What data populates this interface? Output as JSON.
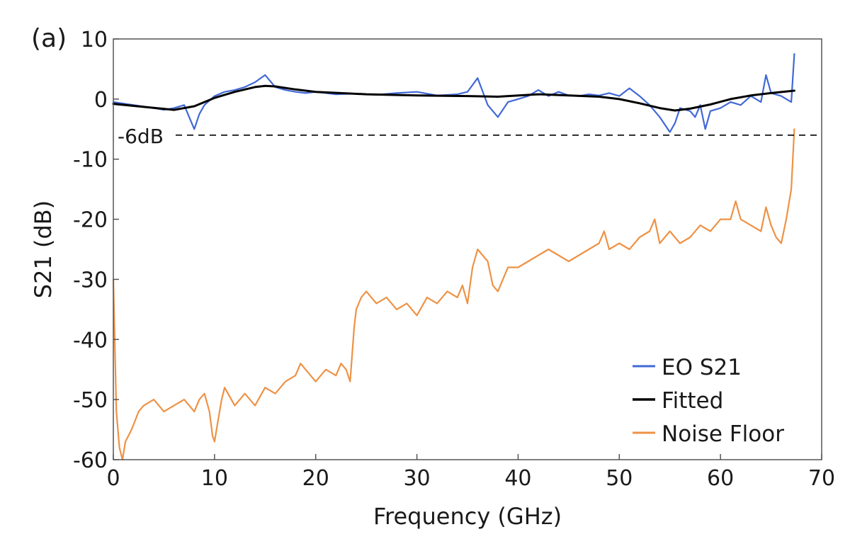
{
  "chart_data": {
    "type": "line",
    "panel_label": "(a)",
    "xlabel": "Frequency (GHz)",
    "ylabel": "S21 (dB)",
    "xlim": [
      0,
      70
    ],
    "ylim": [
      -60,
      10
    ],
    "xticks": [
      0,
      10,
      20,
      30,
      40,
      50,
      60,
      70
    ],
    "yticks": [
      10,
      0,
      -10,
      -20,
      -30,
      -40,
      -50,
      -60
    ],
    "grid": false,
    "legend_position": "bottom-right",
    "reference_line": {
      "y": -6,
      "label": "-6dB",
      "style": "dashed",
      "color": "#000000"
    },
    "series": [
      {
        "name": "EO S21",
        "color": "#4169d6",
        "x": [
          0,
          2,
          4,
          5,
          6,
          7,
          7.5,
          8,
          8.5,
          9,
          10,
          11,
          12,
          13,
          14,
          15,
          16,
          17,
          18,
          19,
          20,
          22,
          24,
          26,
          28,
          30,
          32,
          34,
          35,
          36,
          37,
          38,
          39,
          40,
          41,
          42,
          43,
          44,
          45,
          46,
          47,
          48,
          49,
          50,
          51,
          52,
          53,
          54,
          55,
          55.5,
          56,
          57,
          57.5,
          58,
          58.5,
          59,
          60,
          61,
          62,
          63,
          64,
          64.5,
          65,
          66,
          67,
          67.3
        ],
        "y": [
          -0.5,
          -1,
          -1.5,
          -1.8,
          -1.5,
          -1,
          -3,
          -5,
          -2.5,
          -1,
          0.5,
          1.2,
          1.5,
          2,
          2.8,
          4,
          2,
          1.5,
          1.2,
          1,
          1.2,
          0.8,
          0.9,
          0.7,
          1,
          1.2,
          0.6,
          0.8,
          1.2,
          3.5,
          -1,
          -3,
          -0.5,
          0,
          0.5,
          1.5,
          0.5,
          1.2,
          0.6,
          0.5,
          0.8,
          0.6,
          1,
          0.5,
          1.8,
          0.5,
          -1,
          -3,
          -5.5,
          -4,
          -1.5,
          -2,
          -3,
          -1,
          -5,
          -2,
          -1.5,
          -0.5,
          -1,
          0.5,
          -0.5,
          4,
          1,
          0.5,
          -0.5,
          7.5
        ]
      },
      {
        "name": "Fitted",
        "color": "#000000",
        "x": [
          0,
          3,
          6,
          8,
          10,
          12,
          14,
          15,
          16,
          18,
          20,
          25,
          30,
          35,
          38,
          42,
          45,
          48,
          50,
          52,
          54,
          55.5,
          57,
          59,
          61,
          63,
          65,
          67.3
        ],
        "y": [
          -0.8,
          -1.3,
          -1.8,
          -1.2,
          0.2,
          1.2,
          2,
          2.2,
          2.1,
          1.6,
          1.2,
          0.8,
          0.6,
          0.5,
          0.4,
          0.8,
          0.6,
          0.4,
          0,
          -0.7,
          -1.5,
          -1.9,
          -1.6,
          -0.9,
          0,
          0.6,
          1,
          1.4
        ]
      },
      {
        "name": "Noise Floor",
        "color": "#ee9245",
        "x": [
          0,
          0.3,
          0.6,
          0.9,
          1.2,
          1.8,
          2.5,
          3,
          4,
          5,
          6,
          7,
          8,
          8.5,
          9,
          9.5,
          9.8,
          10,
          10.3,
          10.7,
          11,
          12,
          13,
          14,
          15,
          16,
          17,
          18,
          18.5,
          19,
          20,
          21,
          22,
          22.5,
          23,
          23.4,
          23.8,
          24,
          24.5,
          25,
          26,
          27,
          28,
          29,
          30,
          31,
          32,
          33,
          34,
          34.5,
          35,
          35.5,
          36,
          36.5,
          37,
          37.5,
          38,
          38.5,
          39,
          40,
          41,
          42,
          43,
          44,
          45,
          46,
          47,
          48,
          48.5,
          49,
          50,
          51,
          52,
          53,
          53.5,
          54,
          55,
          56,
          57,
          58,
          59,
          60,
          61,
          61.5,
          62,
          63,
          64,
          64.5,
          65,
          65.5,
          66,
          66.5,
          67,
          67.3
        ],
        "y": [
          -30,
          -52,
          -58,
          -60,
          -57,
          -55,
          -52,
          -51,
          -50,
          -52,
          -51,
          -50,
          -52,
          -50,
          -49,
          -52,
          -56,
          -57,
          -54,
          -50,
          -48,
          -51,
          -49,
          -51,
          -48,
          -49,
          -47,
          -46,
          -44,
          -45,
          -47,
          -45,
          -46,
          -44,
          -45,
          -47,
          -38,
          -35,
          -33,
          -32,
          -34,
          -33,
          -35,
          -34,
          -36,
          -33,
          -34,
          -32,
          -33,
          -31,
          -34,
          -28,
          -25,
          -26,
          -27,
          -31,
          -32,
          -30,
          -28,
          -28,
          -27,
          -26,
          -25,
          -26,
          -27,
          -26,
          -25,
          -24,
          -22,
          -25,
          -24,
          -25,
          -23,
          -22,
          -20,
          -24,
          -22,
          -24,
          -23,
          -21,
          -22,
          -20,
          -20,
          -17,
          -20,
          -21,
          -22,
          -18,
          -21,
          -23,
          -24,
          -20,
          -15,
          -5
        ]
      }
    ]
  }
}
